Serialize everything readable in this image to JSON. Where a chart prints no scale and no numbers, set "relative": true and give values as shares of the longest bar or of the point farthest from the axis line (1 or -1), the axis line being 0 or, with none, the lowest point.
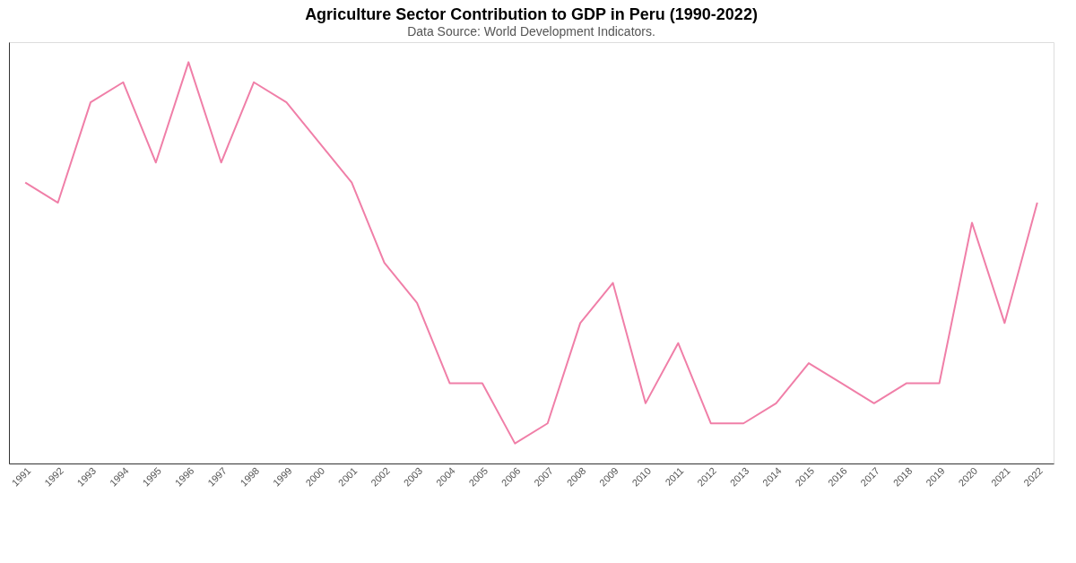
{
  "chart_data": {
    "type": "line",
    "title": "Agriculture Sector Contribution to GDP in Peru (1990-2022)",
    "subtitle": "Data Source: World Development Indicators.",
    "relative": true,
    "grid": false,
    "marker": "none",
    "line_style": "solid",
    "categories": [
      "1991",
      "1992",
      "1993",
      "1994",
      "1995",
      "1996",
      "1997",
      "1998",
      "1999",
      "2000",
      "2001",
      "2002",
      "2003",
      "2004",
      "2005",
      "2006",
      "2007",
      "2008",
      "2009",
      "2010",
      "2011",
      "2012",
      "2013",
      "2014",
      "2015",
      "2016",
      "2017",
      "2018",
      "2019",
      "2020",
      "2021",
      "2022"
    ],
    "series": [
      {
        "color": "#f07fa8",
        "values": [
          0.7,
          0.65,
          0.9,
          0.95,
          0.75,
          1,
          0.75,
          0.95,
          0.9,
          0.8,
          0.7,
          0.5,
          0.4,
          0.2,
          0.2,
          0.05,
          0.1,
          0.35,
          0.45,
          0.15,
          0.3,
          0.1,
          0.1,
          0.15,
          0.25,
          0.2,
          0.15,
          0.2,
          0.2,
          0.6,
          0.35,
          0.65
        ]
      }
    ]
  }
}
